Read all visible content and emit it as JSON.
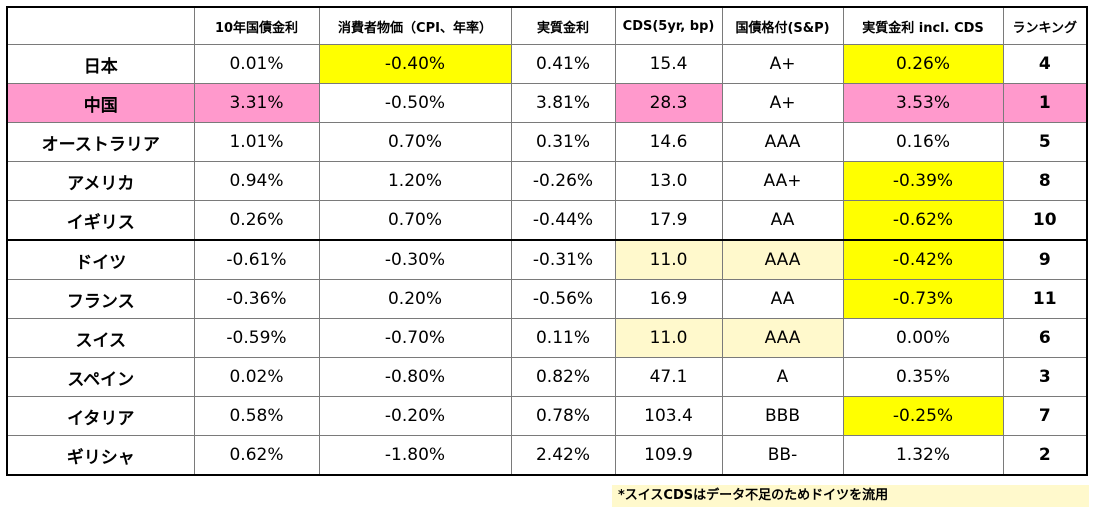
{
  "headers": [
    "",
    "10年国債金利",
    "消費者物価（CPI、年率）",
    "実質金利",
    "CDS(5yr, bp)",
    "国債格付(S&P)",
    "実質金利 incl. CDS",
    "ランキング"
  ],
  "rows": [
    {
      "country": "日本",
      "yield": "0.01%",
      "cpi": "-0.40%",
      "real": "0.41%",
      "cds": "15.4",
      "rating": "A+",
      "real_cds": "0.26%",
      "rank": "4"
    },
    {
      "country": "中国",
      "yield": "3.31%",
      "cpi": "-0.50%",
      "real": "3.81%",
      "cds": "28.3",
      "rating": "A+",
      "real_cds": "3.53%",
      "rank": "1"
    },
    {
      "country": "オーストラリア",
      "yield": "1.01%",
      "cpi": "0.70%",
      "real": "0.31%",
      "cds": "14.6",
      "rating": "AAA",
      "real_cds": "0.16%",
      "rank": "5"
    },
    {
      "country": "アメリカ",
      "yield": "0.94%",
      "cpi": "1.20%",
      "real": "-0.26%",
      "cds": "13.0",
      "rating": "AA+",
      "real_cds": "-0.39%",
      "rank": "8"
    },
    {
      "country": "イギリス",
      "yield": "0.26%",
      "cpi": "0.70%",
      "real": "-0.44%",
      "cds": "17.9",
      "rating": "AA",
      "real_cds": "-0.62%",
      "rank": "10"
    },
    {
      "country": "ドイツ",
      "yield": "-0.61%",
      "cpi": "-0.30%",
      "real": "-0.31%",
      "cds": "11.0",
      "rating": "AAA",
      "real_cds": "-0.42%",
      "rank": "9"
    },
    {
      "country": "フランス",
      "yield": "-0.36%",
      "cpi": "0.20%",
      "real": "-0.56%",
      "cds": "16.9",
      "rating": "AA",
      "real_cds": "-0.73%",
      "rank": "11"
    },
    {
      "country": "スイス",
      "yield": "-0.59%",
      "cpi": "-0.70%",
      "real": "0.11%",
      "cds": "11.0",
      "rating": "AAA",
      "real_cds": "0.00%",
      "rank": "6"
    },
    {
      "country": "スペイン",
      "yield": "0.02%",
      "cpi": "-0.80%",
      "real": "0.82%",
      "cds": "47.1",
      "rating": "A",
      "real_cds": "0.35%",
      "rank": "3"
    },
    {
      "country": "イタリア",
      "yield": "0.58%",
      "cpi": "-0.20%",
      "real": "0.78%",
      "cds": "103.4",
      "rating": "BBB",
      "real_cds": "-0.25%",
      "rank": "7"
    },
    {
      "country": "ギリシャ",
      "yield": "0.62%",
      "cpi": "-1.80%",
      "real": "2.42%",
      "cds": "109.9",
      "rating": "BB-",
      "real_cds": "1.32%",
      "rank": "2"
    }
  ],
  "note": "*スイスCDSはデータ不足のためドイツを流用",
  "colors": {
    "yellow": "#ffff00",
    "pink": "#ff99cc",
    "cream": "#fff9cc"
  }
}
